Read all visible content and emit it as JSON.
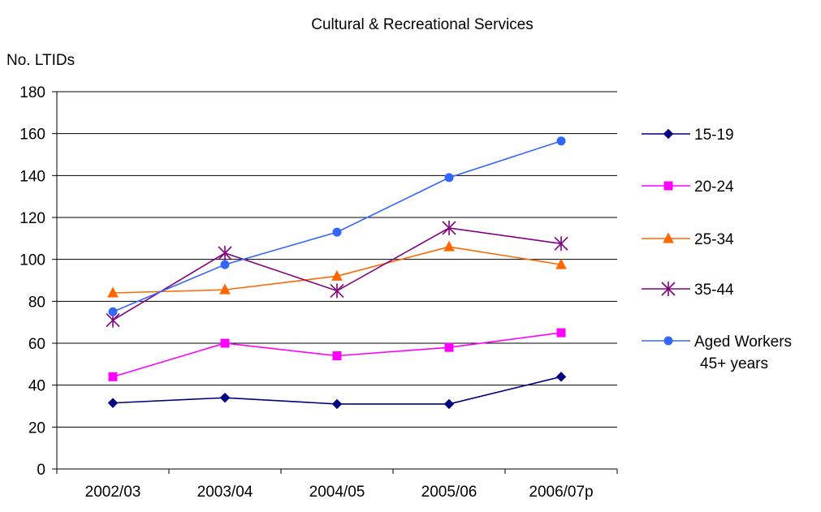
{
  "chart_data": {
    "type": "line",
    "title": "Cultural & Recreational Services",
    "xlabel": "",
    "ylabel": "No. LTIDs",
    "categories": [
      "2002/03",
      "2003/04",
      "2004/05",
      "2005/06",
      "2006/07p"
    ],
    "ylim": [
      0,
      180
    ],
    "yticks": [
      0,
      20,
      40,
      60,
      80,
      100,
      120,
      140,
      160,
      180
    ],
    "grid": "horizontal",
    "legend_position": "right",
    "series": [
      {
        "name": "15-19",
        "values": [
          31.5,
          34,
          31,
          31,
          44
        ],
        "color": "#000080",
        "marker": "diamond"
      },
      {
        "name": "20-24",
        "values": [
          44,
          60,
          54,
          58,
          65
        ],
        "color": "#ff00ff",
        "marker": "square"
      },
      {
        "name": "25-34",
        "values": [
          84,
          85.5,
          92,
          106,
          97.5
        ],
        "color": "#ff6600",
        "marker": "triangle"
      },
      {
        "name": "35-44",
        "values": [
          71,
          103,
          85,
          115,
          107.5
        ],
        "color": "#800080",
        "marker": "star"
      },
      {
        "name": "Aged Workers 45+ years",
        "name_lines": [
          "Aged Workers",
          "45+ years"
        ],
        "values": [
          75,
          97.5,
          113,
          139,
          156.5
        ],
        "color": "#3366ff",
        "marker": "circle"
      }
    ]
  }
}
